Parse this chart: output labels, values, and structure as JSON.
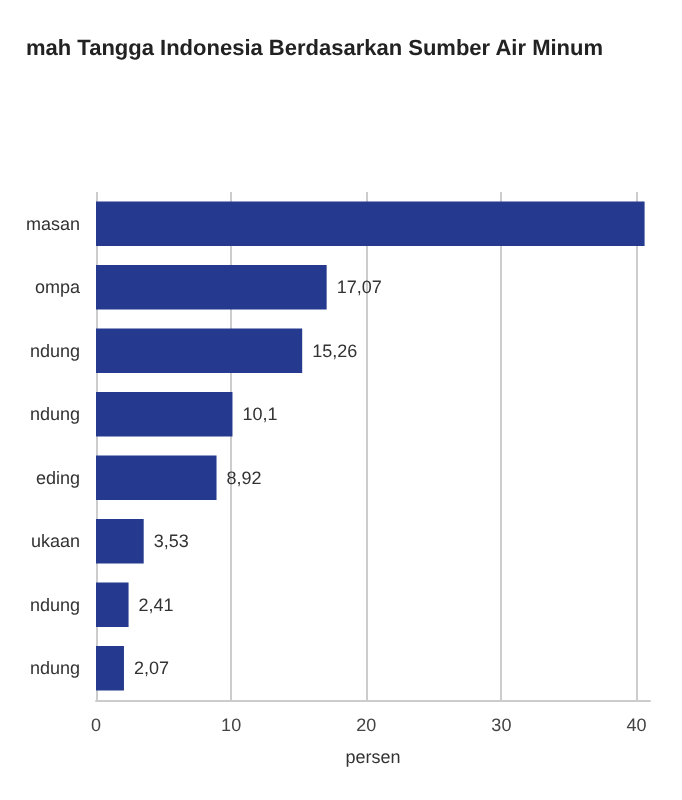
{
  "chart_data": {
    "type": "bar",
    "orientation": "horizontal",
    "title": "mah Tangga Indonesia Berdasarkan Sumber Air Minum",
    "xlabel": "persen",
    "categories": [
      "masan",
      "ompa",
      "ndung",
      "ndung",
      "eding",
      "ukaan",
      "ndung",
      "ndung"
    ],
    "values": [
      40.6,
      17.07,
      15.26,
      10.1,
      8.92,
      3.53,
      2.41,
      2.07
    ],
    "value_labels": [
      null,
      "17,07",
      "15,26",
      "10,1",
      "8,92",
      "3,53",
      "2,41",
      "2,07"
    ],
    "color": "#253a8e",
    "xlim": [
      0,
      41
    ],
    "xticks": [
      0,
      10,
      20,
      30,
      40
    ],
    "grid": "x"
  }
}
